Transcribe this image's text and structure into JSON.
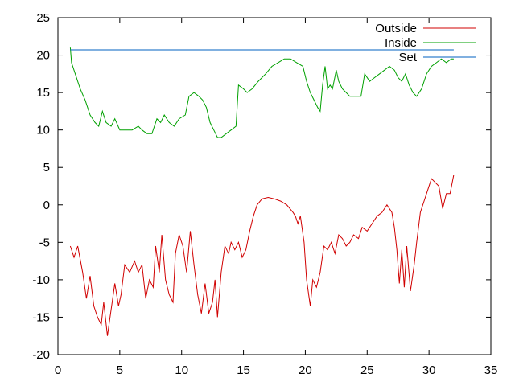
{
  "chart_data": {
    "type": "line",
    "title": "",
    "xlabel": "",
    "ylabel": "",
    "xlim": [
      0,
      35
    ],
    "ylim": [
      -20,
      25
    ],
    "x_ticks": [
      0,
      5,
      10,
      15,
      20,
      25,
      30,
      35
    ],
    "y_ticks": [
      -20,
      -15,
      -10,
      -5,
      0,
      5,
      10,
      15,
      20,
      25
    ],
    "grid": false,
    "legend_position": "top-right",
    "series": [
      {
        "name": "Outside",
        "color": "#d00000",
        "points": [
          [
            1.0,
            -5.5
          ],
          [
            1.3,
            -7.0
          ],
          [
            1.6,
            -5.5
          ],
          [
            2.0,
            -9.0
          ],
          [
            2.3,
            -12.5
          ],
          [
            2.6,
            -9.5
          ],
          [
            2.9,
            -13.5
          ],
          [
            3.2,
            -15.0
          ],
          [
            3.5,
            -16.0
          ],
          [
            3.7,
            -13.0
          ],
          [
            4.0,
            -17.5
          ],
          [
            4.3,
            -14.0
          ],
          [
            4.6,
            -10.5
          ],
          [
            4.9,
            -13.5
          ],
          [
            5.1,
            -12.0
          ],
          [
            5.4,
            -8.0
          ],
          [
            5.8,
            -9.0
          ],
          [
            6.2,
            -7.5
          ],
          [
            6.5,
            -9.0
          ],
          [
            6.8,
            -8.0
          ],
          [
            7.1,
            -12.5
          ],
          [
            7.4,
            -10.0
          ],
          [
            7.7,
            -11.0
          ],
          [
            7.9,
            -5.5
          ],
          [
            8.2,
            -9.0
          ],
          [
            8.4,
            -4.0
          ],
          [
            8.7,
            -10.0
          ],
          [
            9.0,
            -12.0
          ],
          [
            9.3,
            -13.0
          ],
          [
            9.5,
            -6.5
          ],
          [
            9.8,
            -4.0
          ],
          [
            10.1,
            -5.5
          ],
          [
            10.4,
            -9.0
          ],
          [
            10.7,
            -3.5
          ],
          [
            11.0,
            -8.0
          ],
          [
            11.3,
            -12.0
          ],
          [
            11.6,
            -14.5
          ],
          [
            11.9,
            -10.5
          ],
          [
            12.2,
            -14.5
          ],
          [
            12.5,
            -13.0
          ],
          [
            12.7,
            -10.0
          ],
          [
            12.9,
            -15.0
          ],
          [
            13.2,
            -9.0
          ],
          [
            13.5,
            -5.5
          ],
          [
            13.8,
            -6.5
          ],
          [
            14.0,
            -5.0
          ],
          [
            14.3,
            -6.0
          ],
          [
            14.6,
            -5.0
          ],
          [
            14.9,
            -7.0
          ],
          [
            15.2,
            -6.0
          ],
          [
            15.5,
            -3.5
          ],
          [
            15.8,
            -1.5
          ],
          [
            16.1,
            0.0
          ],
          [
            16.5,
            0.8
          ],
          [
            17.0,
            1.0
          ],
          [
            17.5,
            0.8
          ],
          [
            18.0,
            0.5
          ],
          [
            18.5,
            0.0
          ],
          [
            19.0,
            -1.0
          ],
          [
            19.2,
            -1.5
          ],
          [
            19.4,
            -2.5
          ],
          [
            19.6,
            -1.5
          ],
          [
            19.9,
            -5.0
          ],
          [
            20.1,
            -10.0
          ],
          [
            20.4,
            -13.5
          ],
          [
            20.6,
            -10.0
          ],
          [
            20.9,
            -11.0
          ],
          [
            21.2,
            -9.0
          ],
          [
            21.5,
            -5.5
          ],
          [
            21.8,
            -6.0
          ],
          [
            22.1,
            -5.0
          ],
          [
            22.4,
            -6.5
          ],
          [
            22.7,
            -4.0
          ],
          [
            23.0,
            -4.5
          ],
          [
            23.3,
            -5.5
          ],
          [
            23.6,
            -5.0
          ],
          [
            23.9,
            -4.0
          ],
          [
            24.3,
            -4.5
          ],
          [
            24.6,
            -3.0
          ],
          [
            25.0,
            -3.5
          ],
          [
            25.4,
            -2.5
          ],
          [
            25.8,
            -1.5
          ],
          [
            26.2,
            -1.0
          ],
          [
            26.6,
            0.0
          ],
          [
            27.0,
            -1.0
          ],
          [
            27.2,
            -3.0
          ],
          [
            27.4,
            -6.0
          ],
          [
            27.6,
            -10.5
          ],
          [
            27.8,
            -6.0
          ],
          [
            28.0,
            -11.0
          ],
          [
            28.2,
            -5.5
          ],
          [
            28.5,
            -11.5
          ],
          [
            28.8,
            -8.0
          ],
          [
            29.0,
            -5.0
          ],
          [
            29.3,
            -1.0
          ],
          [
            29.6,
            0.5
          ],
          [
            29.9,
            2.0
          ],
          [
            30.2,
            3.5
          ],
          [
            30.5,
            3.0
          ],
          [
            30.8,
            2.5
          ],
          [
            31.1,
            -0.5
          ],
          [
            31.4,
            1.5
          ],
          [
            31.7,
            1.5
          ],
          [
            32.0,
            4.0
          ]
        ]
      },
      {
        "name": "Inside",
        "color": "#00a000",
        "points": [
          [
            1.0,
            21.0
          ],
          [
            1.1,
            19.0
          ],
          [
            1.4,
            17.5
          ],
          [
            1.8,
            15.5
          ],
          [
            2.2,
            14.0
          ],
          [
            2.6,
            12.0
          ],
          [
            3.0,
            11.0
          ],
          [
            3.3,
            10.5
          ],
          [
            3.6,
            12.5
          ],
          [
            3.9,
            11.0
          ],
          [
            4.3,
            10.5
          ],
          [
            4.6,
            11.5
          ],
          [
            5.0,
            10.0
          ],
          [
            5.5,
            10.0
          ],
          [
            6.0,
            10.0
          ],
          [
            6.5,
            10.5
          ],
          [
            6.8,
            10.0
          ],
          [
            7.2,
            9.5
          ],
          [
            7.6,
            9.5
          ],
          [
            8.0,
            11.5
          ],
          [
            8.3,
            11.0
          ],
          [
            8.6,
            12.0
          ],
          [
            9.0,
            11.0
          ],
          [
            9.4,
            10.5
          ],
          [
            9.8,
            11.5
          ],
          [
            10.3,
            12.0
          ],
          [
            10.6,
            14.5
          ],
          [
            11.0,
            15.0
          ],
          [
            11.4,
            14.5
          ],
          [
            11.7,
            14.0
          ],
          [
            12.0,
            13.0
          ],
          [
            12.3,
            11.0
          ],
          [
            12.6,
            10.0
          ],
          [
            12.9,
            9.0
          ],
          [
            13.2,
            9.0
          ],
          [
            13.6,
            9.5
          ],
          [
            14.0,
            10.0
          ],
          [
            14.4,
            10.5
          ],
          [
            14.6,
            16.0
          ],
          [
            15.0,
            15.5
          ],
          [
            15.3,
            15.0
          ],
          [
            15.7,
            15.5
          ],
          [
            16.2,
            16.5
          ],
          [
            16.8,
            17.5
          ],
          [
            17.3,
            18.5
          ],
          [
            17.8,
            19.0
          ],
          [
            18.3,
            19.5
          ],
          [
            18.8,
            19.5
          ],
          [
            19.3,
            19.0
          ],
          [
            19.8,
            18.5
          ],
          [
            20.1,
            16.5
          ],
          [
            20.4,
            15.0
          ],
          [
            20.7,
            14.0
          ],
          [
            21.0,
            13.0
          ],
          [
            21.2,
            12.5
          ],
          [
            21.4,
            16.0
          ],
          [
            21.6,
            18.5
          ],
          [
            21.8,
            15.5
          ],
          [
            22.0,
            16.0
          ],
          [
            22.2,
            15.5
          ],
          [
            22.5,
            18.0
          ],
          [
            22.7,
            16.5
          ],
          [
            23.0,
            15.5
          ],
          [
            23.3,
            15.0
          ],
          [
            23.6,
            14.5
          ],
          [
            24.0,
            14.5
          ],
          [
            24.5,
            14.5
          ],
          [
            24.8,
            17.5
          ],
          [
            25.2,
            16.5
          ],
          [
            25.6,
            17.0
          ],
          [
            26.0,
            17.5
          ],
          [
            26.4,
            18.0
          ],
          [
            26.8,
            18.5
          ],
          [
            27.2,
            18.0
          ],
          [
            27.5,
            17.0
          ],
          [
            27.8,
            16.5
          ],
          [
            28.1,
            17.5
          ],
          [
            28.4,
            16.0
          ],
          [
            28.7,
            15.0
          ],
          [
            29.0,
            14.5
          ],
          [
            29.4,
            15.5
          ],
          [
            29.8,
            17.5
          ],
          [
            30.2,
            18.5
          ],
          [
            30.6,
            19.0
          ],
          [
            31.0,
            19.5
          ],
          [
            31.4,
            19.0
          ],
          [
            31.8,
            19.5
          ],
          [
            32.0,
            19.5
          ]
        ]
      },
      {
        "name": "Set",
        "color": "#0060c0",
        "points": [
          [
            1.0,
            20.7
          ],
          [
            32.0,
            20.7
          ]
        ]
      }
    ]
  }
}
